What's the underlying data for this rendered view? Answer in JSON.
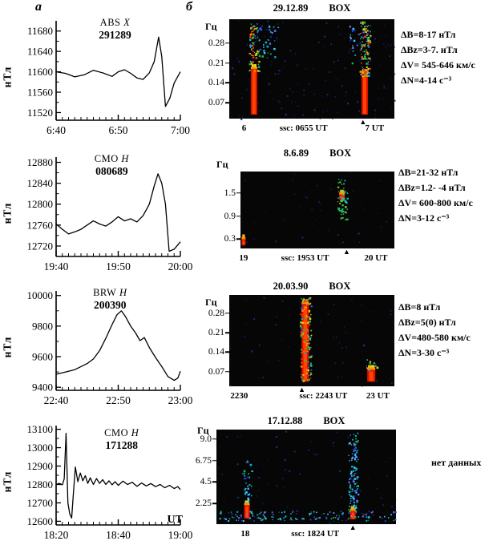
{
  "labels": {
    "panel_a": "а",
    "panel_b": "б",
    "y_unit": "нТл",
    "freq_unit": "Гц",
    "ut": "UT"
  },
  "annotations": [
    {
      "lines": [
        "ΔB=8-17 нТл",
        "ΔBz=3-7. нТл",
        "ΔV= 545-646 км/с",
        "ΔN=4-14 с⁻³"
      ]
    },
    {
      "lines": [
        "ΔB=21-32 нТл",
        "ΔBz=1.2- -4 нТл",
        "ΔV= 600-800 км/с",
        "ΔN=3-12 с⁻³"
      ]
    },
    {
      "lines": [
        "ΔB=8 нТл",
        "ΔBz=5(0) нТл",
        "ΔV=480-580 км/с",
        "ΔN=3-30 с⁻³"
      ]
    },
    {
      "lines": [
        "нет данных"
      ]
    }
  ],
  "chart_data": [
    {
      "type": "line",
      "station": "ABS",
      "component": "X",
      "event_id": "291289",
      "ylabel": "нТл",
      "y_ticks": [
        11680,
        11640,
        11600,
        11560,
        11520
      ],
      "ylim": [
        11505,
        11700
      ],
      "x_tick_labels": [
        "6:40",
        "6:50",
        "7:00"
      ],
      "x_tick_pos": [
        0,
        10,
        20
      ],
      "xlim": [
        0,
        20
      ],
      "x_minor": 1,
      "x": [
        0,
        1.5,
        3,
        4.5,
        6,
        7.5,
        9,
        10,
        11,
        12,
        13,
        14,
        15,
        15.8,
        16.5,
        17,
        17.6,
        18.3,
        19,
        20
      ],
      "y": [
        11600,
        11597,
        11590,
        11594,
        11603,
        11598,
        11591,
        11600,
        11604,
        11597,
        11588,
        11585,
        11598,
        11620,
        11668,
        11630,
        11532,
        11548,
        11578,
        11600
      ]
    },
    {
      "type": "spectrogram",
      "date": "29.12.89",
      "station": "BOX",
      "ylabel": "Гц",
      "y_ticks": [
        "0.28",
        "0.21",
        "0.14",
        "0.07"
      ],
      "tick_span": [
        24,
        84
      ],
      "x_labels": [
        {
          "text": "6",
          "pct": 9
        },
        {
          "text": "ssc: 0655 UT",
          "pct": 45
        },
        {
          "text": "7 UT",
          "pct": 88
        }
      ],
      "marker_pct": 81,
      "noise": 150,
      "events": [
        {
          "x_pct": 15,
          "w": 8,
          "red": [
            50,
            96
          ],
          "specks": {
            "top": 4,
            "bottom": 52,
            "count": 80,
            "palette": "hot"
          }
        },
        {
          "x_pct": 24,
          "w": 18,
          "specks": {
            "top": 6,
            "bottom": 40,
            "count": 30,
            "palette": "cool"
          }
        },
        {
          "x_pct": 78,
          "w": 20,
          "specks": {
            "top": 3,
            "bottom": 45,
            "count": 35,
            "palette": "cool"
          }
        },
        {
          "x_pct": 82,
          "w": 8,
          "red": [
            55,
            96
          ],
          "specks": {
            "top": 2,
            "bottom": 57,
            "count": 100,
            "palette": "hot"
          }
        }
      ]
    },
    {
      "type": "line",
      "station": "CMO",
      "component": "H",
      "event_id": "080689",
      "ylabel": "нТл",
      "y_ticks": [
        12880,
        12840,
        12800,
        12760,
        12720
      ],
      "ylim": [
        12700,
        12890
      ],
      "x_tick_labels": [
        "19:40",
        "19:50",
        "20:00"
      ],
      "x_tick_pos": [
        0,
        10,
        20
      ],
      "xlim": [
        0,
        20
      ],
      "x_minor": 1,
      "x": [
        0,
        1,
        2,
        3,
        4,
        5,
        6,
        7,
        8,
        9,
        10,
        11,
        12,
        13,
        14,
        15,
        15.8,
        16.4,
        17,
        17.6,
        18.2,
        19,
        20
      ],
      "y": [
        12762,
        12752,
        12743,
        12747,
        12752,
        12760,
        12768,
        12762,
        12758,
        12766,
        12776,
        12768,
        12772,
        12766,
        12778,
        12800,
        12835,
        12858,
        12840,
        12800,
        12710,
        12714,
        12728
      ]
    },
    {
      "type": "spectrogram",
      "date": "8.6.89",
      "station": "BOX",
      "ylabel": "Гц",
      "y_ticks": [
        "1.5",
        "0.9",
        "0.3"
      ],
      "tick_span": [
        28,
        88
      ],
      "x_labels": [
        {
          "text": "19",
          "pct": 2
        },
        {
          "text": "ssc: 1953 UT",
          "pct": 42
        },
        {
          "text": "20 UT",
          "pct": 88
        }
      ],
      "marker_pct": 69,
      "noise": 40,
      "events": [
        {
          "x_pct": 66,
          "w": 7,
          "red": [
            30,
            37
          ],
          "specks": {
            "top": 8,
            "bottom": 62,
            "count": 55,
            "palette": "green"
          }
        },
        {
          "x_pct": 2,
          "w": 5,
          "red": [
            88,
            96
          ]
        }
      ]
    },
    {
      "type": "line",
      "station": "BRW",
      "component": "H",
      "event_id": "200390",
      "ylabel": "нТл",
      "y_ticks": [
        10000,
        9800,
        9600,
        9400
      ],
      "ylim": [
        9380,
        10030
      ],
      "x_tick_labels": [
        "22:40",
        "22:50",
        "23:00"
      ],
      "x_tick_pos": [
        0,
        10,
        20
      ],
      "xlim": [
        0,
        20
      ],
      "x_minor": 1,
      "x": [
        0,
        1,
        2,
        3,
        4,
        5,
        6,
        7,
        8,
        9,
        9.8,
        10.5,
        11.2,
        12,
        12.8,
        13.5,
        14.2,
        15,
        16,
        17,
        18,
        19,
        19.6,
        20
      ],
      "y": [
        9485,
        9495,
        9505,
        9515,
        9535,
        9555,
        9585,
        9640,
        9720,
        9810,
        9875,
        9900,
        9860,
        9800,
        9755,
        9705,
        9725,
        9660,
        9595,
        9535,
        9470,
        9445,
        9460,
        9505
      ]
    },
    {
      "type": "spectrogram",
      "date": "20.03.90",
      "station": "BOX",
      "ylabel": "Гц",
      "y_ticks": [
        "0.28",
        "0.21",
        "0.14",
        "0.07"
      ],
      "tick_span": [
        20,
        84
      ],
      "x_labels": [
        {
          "text": "2230",
          "pct": 6
        },
        {
          "text": "ssc: 2243 UT",
          "pct": 57
        },
        {
          "text": "23 UT",
          "pct": 90
        }
      ],
      "marker_pct": 44,
      "noise": 60,
      "events": [
        {
          "x_pct": 46,
          "w": 9,
          "red": [
            10,
            95
          ],
          "specks": {
            "top": 2,
            "bottom": 95,
            "count": 130,
            "palette": "hot"
          }
        },
        {
          "x_pct": 86,
          "w": 10,
          "red": [
            82,
            95
          ],
          "specks": {
            "top": 70,
            "bottom": 82,
            "count": 12,
            "palette": "hot"
          }
        }
      ]
    },
    {
      "type": "line",
      "station": "CMO",
      "component": "H",
      "event_id": "171288",
      "ylabel": "нТл",
      "y_ticks": [
        13100,
        13000,
        12900,
        12800,
        12700,
        12600
      ],
      "ylim": [
        12580,
        13120
      ],
      "x_tick_labels": [
        "18:20",
        "18:40",
        "19:00"
      ],
      "x_tick_pos": [
        0,
        20,
        40
      ],
      "xlim": [
        0,
        40
      ],
      "x_minor": 2,
      "x": [
        0,
        1,
        2,
        2.6,
        3.2,
        3.8,
        4.4,
        5,
        5.6,
        6.2,
        7,
        7.8,
        8.6,
        9.4,
        10.2,
        11,
        12,
        13,
        14,
        15,
        16,
        17,
        18,
        19,
        20,
        21.5,
        23,
        24.5,
        26,
        27.5,
        29,
        30.5,
        32,
        33.5,
        35,
        36.5,
        38,
        39.2,
        40
      ],
      "y": [
        12800,
        12806,
        12798,
        12830,
        13078,
        12700,
        12640,
        12618,
        12760,
        12895,
        12815,
        12862,
        12820,
        12848,
        12806,
        12836,
        12800,
        12832,
        12806,
        12826,
        12800,
        12820,
        12798,
        12815,
        12795,
        12818,
        12800,
        12812,
        12790,
        12808,
        12792,
        12805,
        12788,
        12800,
        12782,
        12795,
        12778,
        12788,
        12772
      ]
    },
    {
      "type": "spectrogram",
      "date": "17.12.88",
      "station": "BOX",
      "ylabel": "Гц",
      "y_ticks": [
        "9.0",
        "6.75",
        "4.5",
        "2.25"
      ],
      "tick_span": [
        10,
        78
      ],
      "x_labels": [
        {
          "text": "18",
          "pct": 16
        },
        {
          "text": "ssc: 1824 UT",
          "pct": 55
        }
      ],
      "marker_pct": 76,
      "noise": 80,
      "bottom_band": {
        "from": 86,
        "to": 96,
        "count": 150
      },
      "events": [
        {
          "x_pct": 17,
          "w": 7,
          "red": [
            80,
            94
          ],
          "specks": {
            "top": 30,
            "bottom": 80,
            "count": 35,
            "palette": "cool"
          }
        },
        {
          "x_pct": 76,
          "w": 7,
          "red": [
            86,
            95
          ],
          "specks": {
            "top": 2,
            "bottom": 86,
            "count": 110,
            "palette": "cool"
          }
        }
      ]
    }
  ]
}
